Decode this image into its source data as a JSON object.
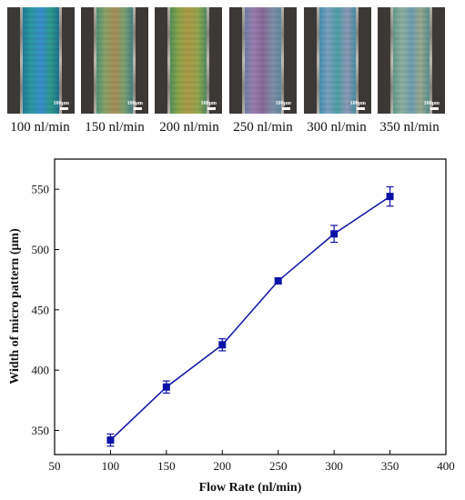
{
  "panels": [
    {
      "label": "100 nl/min",
      "scale": "100μm",
      "colors": [
        "#1f7a9a",
        "#2d9aa0",
        "#3a8fd0",
        "#2f9a8c",
        "#1d6f8f"
      ]
    },
    {
      "label": "150 nl/min",
      "scale": "100μm",
      "colors": [
        "#4a8f7a",
        "#8aa46a",
        "#a88f5a",
        "#7fa070",
        "#3f7f88"
      ]
    },
    {
      "label": "200 nl/min",
      "scale": "100μm",
      "colors": [
        "#4f8f5a",
        "#8fa64a",
        "#b09a48",
        "#93a84f",
        "#4a8a62"
      ]
    },
    {
      "label": "250 nl/min",
      "scale": "100μm",
      "colors": [
        "#6a7fa8",
        "#9a7fb0",
        "#8a6a9a",
        "#7f90a8",
        "#5f8aa0"
      ]
    },
    {
      "label": "300 nl/min",
      "scale": "100μm",
      "colors": [
        "#3f8fb0",
        "#7fa0c0",
        "#4fa0a8",
        "#8f9ab8",
        "#3f90a0"
      ]
    },
    {
      "label": "350 nl/min",
      "scale": "100μm",
      "colors": [
        "#5f9a8a",
        "#8fb0a0",
        "#6fa0b0",
        "#9aa890",
        "#4f9090"
      ]
    }
  ],
  "chart_data": {
    "type": "line",
    "xlabel": "Flow Rate (nl/min)",
    "ylabel": "Width of micro pattern (μm)",
    "xlim": [
      50,
      400
    ],
    "ylim": [
      330,
      575
    ],
    "xticks": [
      50,
      100,
      150,
      200,
      250,
      300,
      350,
      400
    ],
    "yticks": [
      350,
      400,
      450,
      500,
      550
    ],
    "series": [
      {
        "color": "#0a12a8",
        "marker": "square",
        "x": [
          100,
          150,
          200,
          250,
          300,
          350
        ],
        "y": [
          342,
          386,
          421,
          474,
          513,
          544
        ],
        "error": [
          5,
          5,
          5,
          2,
          7,
          8
        ]
      }
    ]
  }
}
